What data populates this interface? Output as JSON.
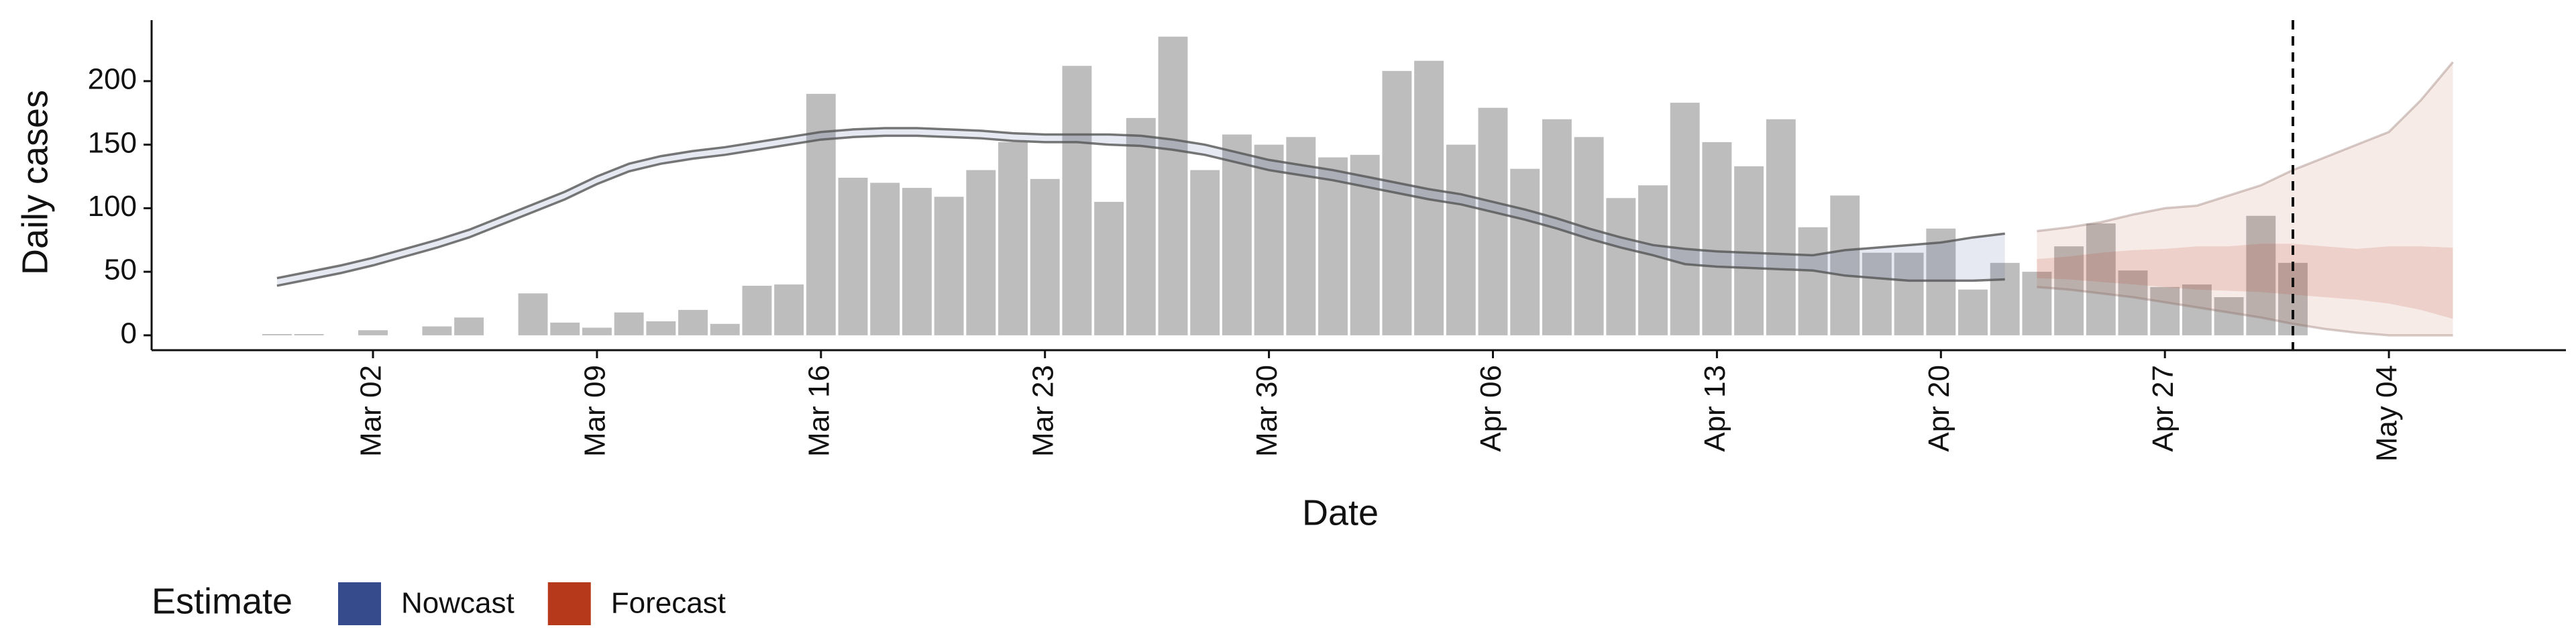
{
  "chart_data": {
    "type": "bar-band",
    "xlabel": "Date",
    "ylabel": "Daily cases",
    "legend_title": "Estimate",
    "x": [
      "Feb 28",
      "Feb 29",
      "Mar 01",
      "Mar 02",
      "Mar 03",
      "Mar 04",
      "Mar 05",
      "Mar 06",
      "Mar 07",
      "Mar 08",
      "Mar 09",
      "Mar 10",
      "Mar 11",
      "Mar 12",
      "Mar 13",
      "Mar 14",
      "Mar 15",
      "Mar 16",
      "Mar 17",
      "Mar 18",
      "Mar 19",
      "Mar 20",
      "Mar 21",
      "Mar 22",
      "Mar 23",
      "Mar 24",
      "Mar 25",
      "Mar 26",
      "Mar 27",
      "Mar 28",
      "Mar 29",
      "Mar 30",
      "Mar 31",
      "Apr 01",
      "Apr 02",
      "Apr 03",
      "Apr 04",
      "Apr 05",
      "Apr 06",
      "Apr 07",
      "Apr 08",
      "Apr 09",
      "Apr 10",
      "Apr 11",
      "Apr 12",
      "Apr 13",
      "Apr 14",
      "Apr 15",
      "Apr 16",
      "Apr 17",
      "Apr 18",
      "Apr 19",
      "Apr 20",
      "Apr 21",
      "Apr 22",
      "Apr 23",
      "Apr 24",
      "Apr 25",
      "Apr 26",
      "Apr 27",
      "Apr 28",
      "Apr 29",
      "Apr 30",
      "May 01",
      "May 02",
      "May 03",
      "May 04",
      "May 05",
      "May 06"
    ],
    "xticks": [
      "Mar 02",
      "Mar 09",
      "Mar 16",
      "Mar 23",
      "Mar 30",
      "Apr 06",
      "Apr 13",
      "Apr 20",
      "Apr 27",
      "May 04"
    ],
    "vline": "May 01",
    "bars": {
      "color": "#bdbdbd",
      "values": [
        1,
        1,
        null,
        4,
        null,
        7,
        14,
        null,
        33,
        10,
        6,
        18,
        11,
        20,
        9,
        39,
        40,
        190,
        124,
        120,
        116,
        109,
        130,
        152,
        123,
        212,
        105,
        171,
        235,
        130,
        158,
        150,
        156,
        140,
        142,
        208,
        216,
        150,
        179,
        131,
        170,
        156,
        108,
        118,
        183,
        152,
        133,
        170,
        85,
        110,
        65,
        65,
        84,
        36,
        57,
        50,
        70,
        88,
        51,
        38,
        40,
        30,
        94,
        57,
        null,
        null,
        null,
        null,
        null
      ]
    },
    "series": [
      {
        "name": "Nowcast",
        "color": "#354b8b",
        "lower": [
          39,
          44,
          49,
          55,
          62,
          69,
          77,
          87,
          97,
          107,
          119,
          129,
          135,
          139,
          142,
          146,
          150,
          154,
          156,
          157,
          157,
          156,
          155,
          153,
          152,
          152,
          150,
          149,
          146,
          142,
          136,
          130,
          126,
          122,
          117,
          112,
          107,
          103,
          97,
          91,
          84,
          76,
          69,
          63,
          56,
          54,
          53,
          52,
          51,
          47,
          45,
          43,
          43,
          43,
          44,
          null,
          null,
          null,
          null,
          null,
          null,
          null,
          null,
          null,
          null,
          null,
          null,
          null,
          null
        ],
        "upper": [
          45,
          50,
          55,
          61,
          68,
          75,
          83,
          93,
          103,
          113,
          125,
          135,
          141,
          145,
          148,
          152,
          156,
          160,
          162,
          163,
          163,
          162,
          161,
          159,
          158,
          158,
          158,
          157,
          154,
          150,
          144,
          138,
          134,
          130,
          125,
          120,
          115,
          111,
          105,
          99,
          92,
          84,
          77,
          71,
          68,
          66,
          65,
          64,
          63,
          67,
          69,
          71,
          73,
          77,
          80,
          null,
          null,
          null,
          null,
          null,
          null,
          null,
          null,
          null,
          null,
          null,
          null,
          null,
          null
        ]
      },
      {
        "name": "Forecast",
        "color": "#b5391a",
        "lower": [
          null,
          null,
          null,
          null,
          null,
          null,
          null,
          null,
          null,
          null,
          null,
          null,
          null,
          null,
          null,
          null,
          null,
          null,
          null,
          null,
          null,
          null,
          null,
          null,
          null,
          null,
          null,
          null,
          null,
          null,
          null,
          null,
          null,
          null,
          null,
          null,
          null,
          null,
          null,
          null,
          null,
          null,
          null,
          null,
          null,
          null,
          null,
          null,
          null,
          null,
          null,
          null,
          null,
          null,
          null,
          38,
          36,
          33,
          30,
          26,
          22,
          18,
          14,
          9,
          5,
          2,
          0,
          0,
          0
        ],
        "upper": [
          null,
          null,
          null,
          null,
          null,
          null,
          null,
          null,
          null,
          null,
          null,
          null,
          null,
          null,
          null,
          null,
          null,
          null,
          null,
          null,
          null,
          null,
          null,
          null,
          null,
          null,
          null,
          null,
          null,
          null,
          null,
          null,
          null,
          null,
          null,
          null,
          null,
          null,
          null,
          null,
          null,
          null,
          null,
          null,
          null,
          null,
          null,
          null,
          null,
          null,
          null,
          null,
          null,
          null,
          null,
          82,
          85,
          89,
          95,
          100,
          102,
          110,
          118,
          130,
          140,
          150,
          160,
          185,
          215
        ],
        "lower_50": [
          null,
          null,
          null,
          null,
          null,
          null,
          null,
          null,
          null,
          null,
          null,
          null,
          null,
          null,
          null,
          null,
          null,
          null,
          null,
          null,
          null,
          null,
          null,
          null,
          null,
          null,
          null,
          null,
          null,
          null,
          null,
          null,
          null,
          null,
          null,
          null,
          null,
          null,
          null,
          null,
          null,
          null,
          null,
          null,
          null,
          null,
          null,
          null,
          null,
          null,
          null,
          null,
          null,
          null,
          null,
          45,
          44,
          42,
          40,
          38,
          36,
          35,
          34,
          32,
          30,
          28,
          25,
          20,
          13
        ],
        "upper_50": [
          null,
          null,
          null,
          null,
          null,
          null,
          null,
          null,
          null,
          null,
          null,
          null,
          null,
          null,
          null,
          null,
          null,
          null,
          null,
          null,
          null,
          null,
          null,
          null,
          null,
          null,
          null,
          null,
          null,
          null,
          null,
          null,
          null,
          null,
          null,
          null,
          null,
          null,
          null,
          null,
          null,
          null,
          null,
          null,
          null,
          null,
          null,
          null,
          null,
          null,
          null,
          null,
          null,
          null,
          null,
          60,
          62,
          65,
          67,
          68,
          70,
          70,
          72,
          72,
          70,
          68,
          70,
          70,
          69
        ]
      }
    ],
    "ylim": [
      -11.7,
      248
    ],
    "yticks": [
      0,
      50,
      100,
      150,
      200
    ]
  }
}
